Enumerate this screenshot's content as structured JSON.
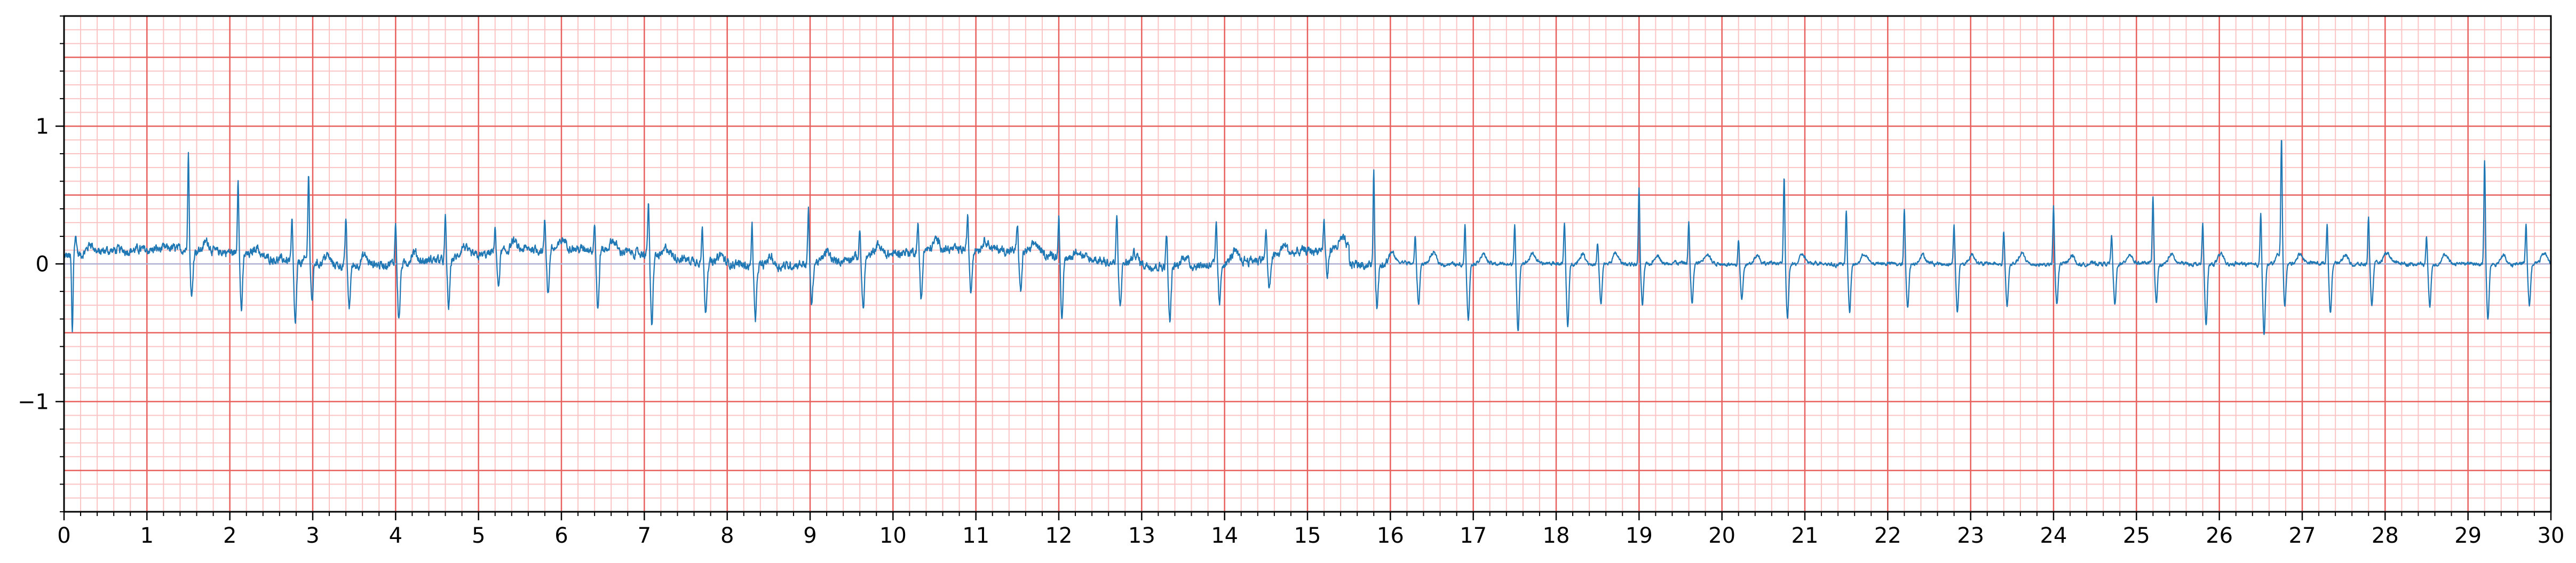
{
  "chart_data": {
    "type": "line",
    "title": "",
    "xlabel": "",
    "ylabel": "",
    "xlim": [
      0,
      30
    ],
    "ylim": [
      -1.8,
      1.8
    ],
    "grid": true,
    "grid_style": "ecg paper: major every 1 s / 0.5 mV, minor every 0.2 s / 0.1 mV",
    "x_ticks": [
      0,
      1,
      2,
      3,
      4,
      5,
      6,
      7,
      8,
      9,
      10,
      11,
      12,
      13,
      14,
      15,
      16,
      17,
      18,
      19,
      20,
      21,
      22,
      23,
      24,
      25,
      26,
      27,
      28,
      29,
      30
    ],
    "x_tick_labels": [
      "0",
      "1",
      "2",
      "3",
      "4",
      "5",
      "6",
      "7",
      "8",
      "9",
      "10",
      "11",
      "12",
      "13",
      "14",
      "15",
      "16",
      "17",
      "18",
      "19",
      "20",
      "21",
      "22",
      "23",
      "24",
      "25",
      "26",
      "27",
      "28",
      "29",
      "30"
    ],
    "y_ticks": [
      -1,
      0,
      1
    ],
    "y_tick_labels": [
      "−1",
      "0",
      "1"
    ],
    "series": [
      {
        "color": "#1f77b4",
        "beats": [
          [
            0.1,
            -0.57,
            0.14
          ],
          [
            1.5,
            0.72,
            -0.35
          ],
          [
            2.1,
            0.57,
            -0.4
          ],
          [
            2.75,
            0.3,
            -0.45
          ],
          [
            2.95,
            0.61,
            -0.35
          ],
          [
            3.4,
            0.35,
            -0.3
          ],
          [
            4.0,
            0.3,
            -0.4
          ],
          [
            4.6,
            0.3,
            -0.35
          ],
          [
            5.2,
            0.2,
            -0.25
          ],
          [
            5.8,
            0.2,
            -0.33
          ],
          [
            6.4,
            0.2,
            -0.45
          ],
          [
            7.05,
            0.4,
            -0.52
          ],
          [
            7.7,
            0.25,
            -0.35
          ],
          [
            8.3,
            0.3,
            -0.4
          ],
          [
            8.98,
            0.4,
            -0.3
          ],
          [
            9.6,
            0.2,
            -0.38
          ],
          [
            10.3,
            0.2,
            -0.35
          ],
          [
            10.9,
            0.25,
            -0.3
          ],
          [
            11.5,
            0.2,
            -0.3
          ],
          [
            12.0,
            0.3,
            -0.45
          ],
          [
            12.7,
            0.35,
            -0.3
          ],
          [
            13.3,
            0.25,
            -0.4
          ],
          [
            13.9,
            0.3,
            -0.3
          ],
          [
            14.5,
            0.2,
            -0.25
          ],
          [
            15.2,
            0.2,
            -0.2
          ],
          [
            15.8,
            0.65,
            -0.3
          ],
          [
            16.3,
            0.2,
            -0.3
          ],
          [
            16.9,
            0.3,
            -0.4
          ],
          [
            17.5,
            0.3,
            -0.5
          ],
          [
            18.1,
            0.3,
            -0.45
          ],
          [
            18.5,
            0.15,
            -0.3
          ],
          [
            19.0,
            0.55,
            -0.3
          ],
          [
            19.6,
            0.3,
            -0.3
          ],
          [
            20.2,
            0.2,
            -0.25
          ],
          [
            20.75,
            0.63,
            -0.4
          ],
          [
            21.5,
            0.4,
            -0.35
          ],
          [
            22.2,
            0.4,
            -0.3
          ],
          [
            22.8,
            0.3,
            -0.35
          ],
          [
            23.4,
            0.25,
            -0.3
          ],
          [
            24.0,
            0.42,
            -0.3
          ],
          [
            24.7,
            0.2,
            -0.3
          ],
          [
            25.2,
            0.5,
            -0.28
          ],
          [
            25.8,
            0.3,
            -0.45
          ],
          [
            26.5,
            0.4,
            -0.5
          ],
          [
            26.75,
            0.88,
            -0.3
          ],
          [
            27.3,
            0.3,
            -0.35
          ],
          [
            27.8,
            0.35,
            -0.3
          ],
          [
            28.5,
            0.2,
            -0.3
          ],
          [
            29.2,
            0.77,
            -0.4
          ],
          [
            29.7,
            0.3,
            -0.3
          ]
        ]
      }
    ]
  },
  "colors": {
    "trace": "#1f77b4",
    "grid_major": "#e8605d",
    "grid_minor": "#fbc4c4",
    "zero_line": "#b0b0d0"
  }
}
